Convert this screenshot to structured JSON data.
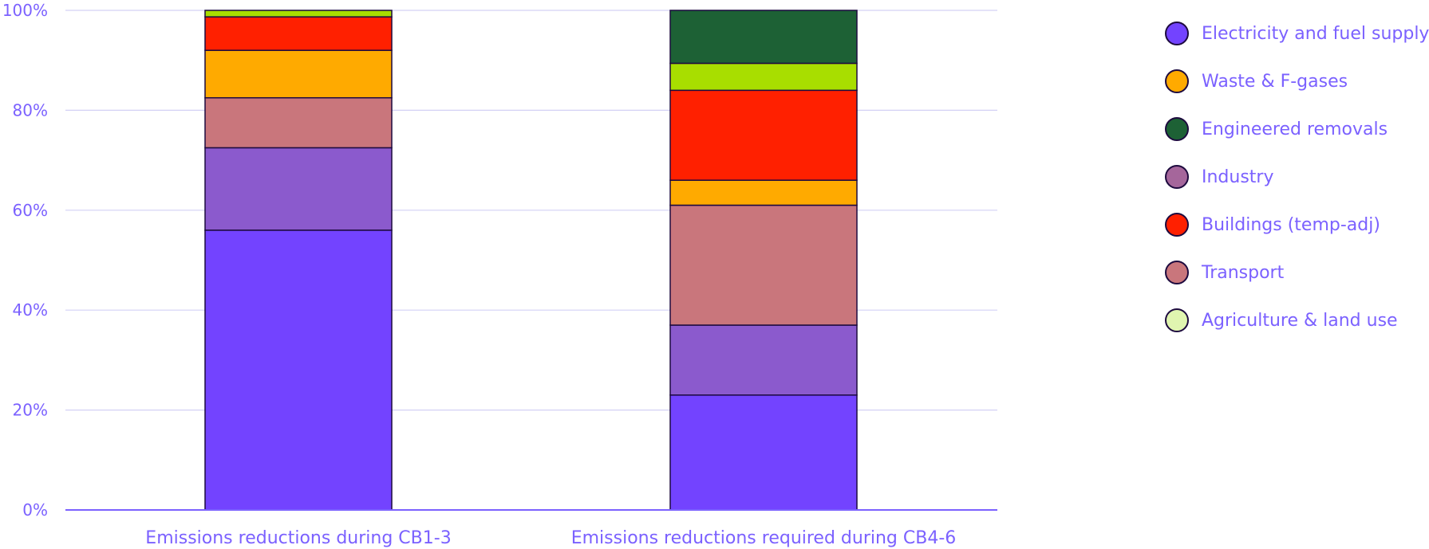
{
  "chart_data": {
    "type": "bar",
    "stacked": true,
    "title": "",
    "xlabel": "",
    "ylabel": "",
    "ylim": [
      0,
      100
    ],
    "y_ticks": [
      "0%",
      "20%",
      "40%",
      "60%",
      "80%",
      "100%"
    ],
    "grid": true,
    "legend_position": "right",
    "categories": [
      "Emissions reductions during CB1-3",
      "Emissions reductions required during CB4-6"
    ],
    "series": [
      {
        "name": "Electricity and fuel supply",
        "color": "#7343ff",
        "values": [
          56,
          23
        ]
      },
      {
        "name": "Industry",
        "color": "#8b5acd",
        "values": [
          16.5,
          14
        ]
      },
      {
        "name": "Transport",
        "color": "#c9767c",
        "values": [
          10,
          24
        ]
      },
      {
        "name": "Waste & F-gases",
        "color": "#ffaa00",
        "values": [
          9.5,
          5
        ]
      },
      {
        "name": "Buildings (temp-adj)",
        "color": "#ff2000",
        "values": [
          6.7,
          18
        ]
      },
      {
        "name": "Agriculture & land use",
        "color": "#a8de00",
        "values": [
          1.3,
          5.4
        ]
      },
      {
        "name": "Engineered removals",
        "color": "#1d6135",
        "values": [
          0,
          10.6
        ]
      }
    ]
  },
  "legend": {
    "items": [
      {
        "label": "Electricity and fuel supply",
        "color": "#7343ff"
      },
      {
        "label": "Waste & F-gases",
        "color": "#ffaa00"
      },
      {
        "label": "Engineered removals",
        "color": "#1d6135"
      },
      {
        "label": "Industry",
        "color": "#a5669b"
      },
      {
        "label": "Buildings (temp-adj)",
        "color": "#ff2000"
      },
      {
        "label": "Transport",
        "color": "#c9767c"
      },
      {
        "label": "Agriculture & land use",
        "color": "#e0f5b0"
      }
    ]
  }
}
